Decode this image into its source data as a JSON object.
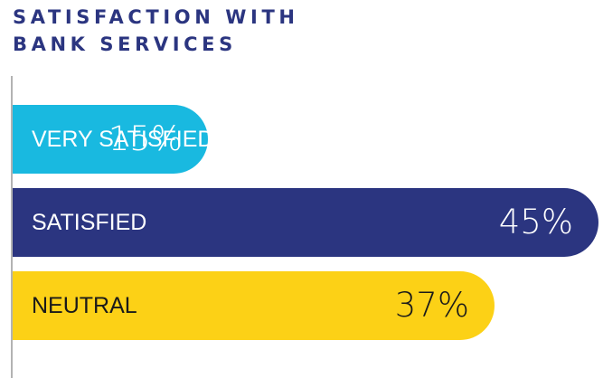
{
  "title_lines": [
    "SATISFACTION WITH",
    "BANK SERVICES"
  ],
  "chart_data": {
    "type": "bar",
    "orientation": "horizontal",
    "title": "SATISFACTION WITH BANK SERVICES",
    "categories": [
      "VERY SATISFIED",
      "SATISFIED",
      "NEUTRAL"
    ],
    "values": [
      15,
      45,
      37
    ],
    "value_labels": [
      "15%",
      "45%",
      "37%"
    ],
    "unit": "%",
    "xlim": [
      0,
      45
    ],
    "grid": false,
    "legend": "none",
    "colors": [
      "#19b9e0",
      "#2b3580",
      "#fcd116"
    ],
    "label_colors": [
      "#ffffff",
      "#ffffff",
      "#1a1a1a"
    ]
  }
}
